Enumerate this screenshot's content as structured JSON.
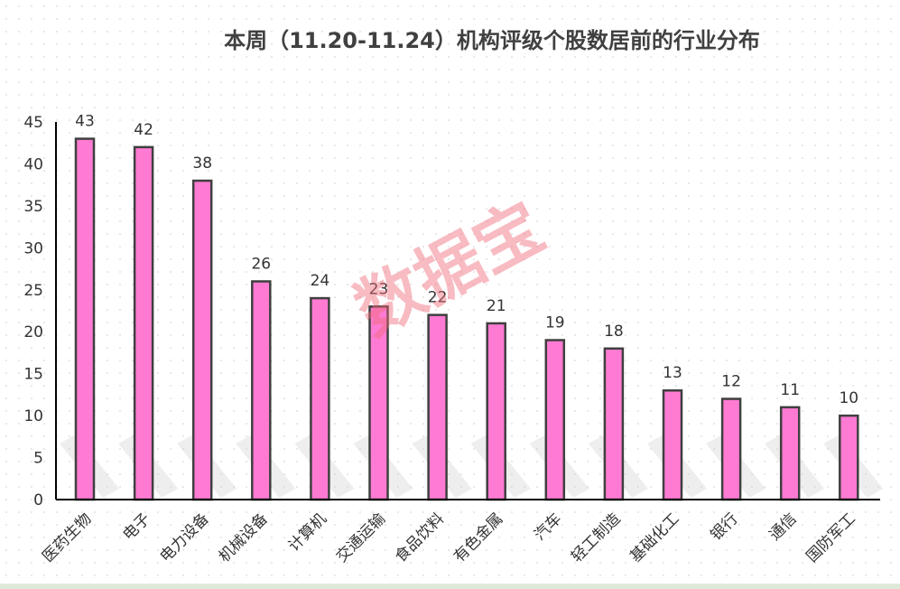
{
  "chart_data": {
    "type": "bar",
    "title": "本周（11.20-11.24）机构评级个股数居前的行业分布",
    "categories": [
      "医药生物",
      "电子",
      "电力设备",
      "机械设备",
      "计算机",
      "交通运输",
      "食品饮料",
      "有色金属",
      "汽车",
      "轻工制造",
      "基础化工",
      "银行",
      "通信",
      "国防军工"
    ],
    "values": [
      43,
      42,
      38,
      26,
      24,
      23,
      22,
      21,
      19,
      18,
      13,
      12,
      11,
      10
    ],
    "yticks": [
      "0",
      "5",
      "10",
      "15",
      "20",
      "25",
      "30",
      "35",
      "40",
      "45"
    ],
    "ylim": [
      0,
      45
    ],
    "xlabel": "",
    "ylabel": "",
    "grid": false,
    "legend": "none",
    "bar_color": "#ff7bd3",
    "bar_edge_color": "#3f3f3f"
  },
  "watermark": "数据宝"
}
